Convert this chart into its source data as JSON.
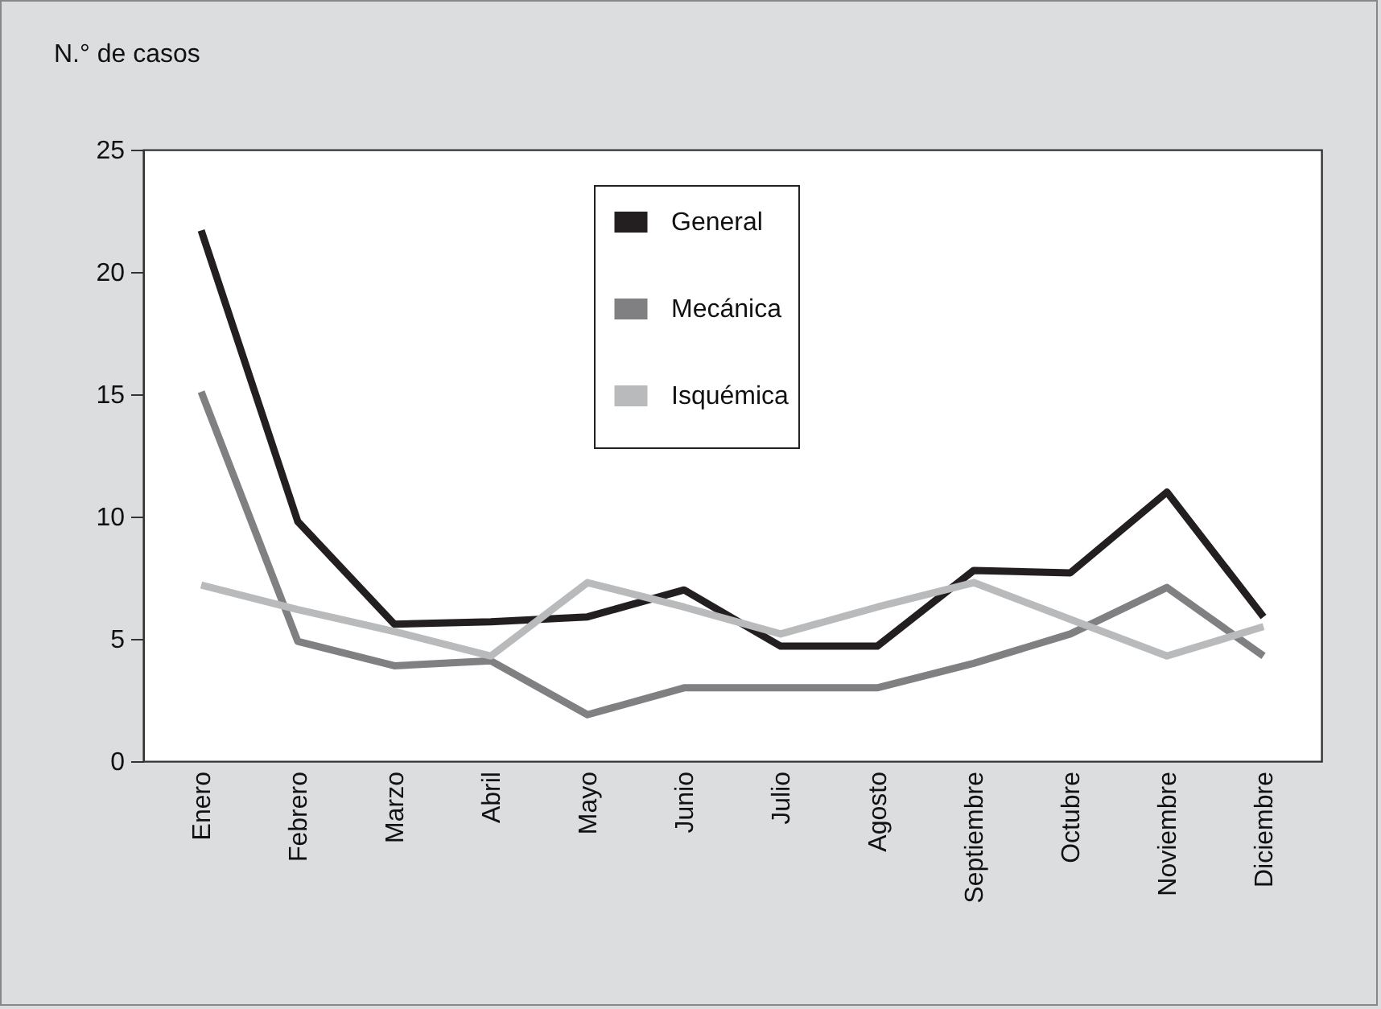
{
  "chart_data": {
    "type": "line",
    "ylabel": "N.° de casos",
    "categories": [
      "Enero",
      "Febrero",
      "Marzo",
      "Abril",
      "Mayo",
      "Junio",
      "Julio",
      "Agosto",
      "Septiembre",
      "Octubre",
      "Noviembre",
      "Diciembre"
    ],
    "series": [
      {
        "name": "General",
        "color": "#231f20",
        "values": [
          21.7,
          9.8,
          5.6,
          5.7,
          5.9,
          7.0,
          4.7,
          4.7,
          7.8,
          7.7,
          11.0,
          5.9
        ]
      },
      {
        "name": "Mecánica",
        "color": "#808083",
        "values": [
          15.1,
          4.9,
          3.9,
          4.1,
          1.9,
          3.0,
          3.0,
          3.0,
          4.0,
          5.2,
          7.1,
          4.3
        ]
      },
      {
        "name": "Isquémica",
        "color": "#b9babc",
        "values": [
          7.2,
          6.2,
          5.3,
          4.3,
          7.3,
          6.3,
          5.2,
          6.3,
          7.3,
          5.8,
          4.3,
          5.5
        ]
      }
    ],
    "ylim": [
      0,
      25
    ],
    "yticks": [
      0,
      5,
      10,
      15,
      20,
      25
    ],
    "grid": false,
    "legend": "top"
  }
}
